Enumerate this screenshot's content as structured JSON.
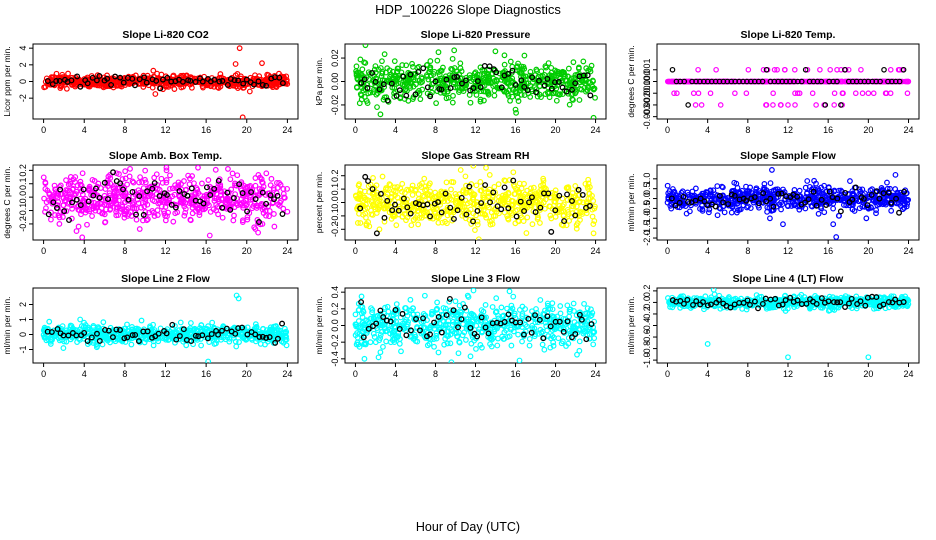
{
  "figure": {
    "title": "HDP_100226  Slope Diagnostics",
    "xlabel": "Hour of Day (UTC)"
  },
  "chart_data": [
    {
      "type": "scatter",
      "title": "Slope Li-820 CO2",
      "ylabel": "Licor ppm per min.",
      "color": "#ff0000",
      "xlim": [
        0,
        24
      ],
      "ylim": [
        -4.5,
        4.5
      ],
      "xticks": [
        0,
        4,
        8,
        12,
        16,
        20,
        24
      ],
      "xtick_labels": [
        "0",
        "4",
        "8",
        "12",
        "16",
        "20",
        "24"
      ],
      "yticks": [
        -2,
        0,
        2,
        4
      ],
      "ytick_labels": [
        "-2",
        "0",
        "2",
        "4"
      ],
      "spread": 0.35,
      "rare": [
        [
          10.8,
          1.3
        ],
        [
          11.0,
          -1.5
        ],
        [
          19.3,
          4.0
        ],
        [
          19.6,
          -4.3
        ],
        [
          18.9,
          2.1
        ],
        [
          20.3,
          -1.2
        ],
        [
          21.5,
          2.2
        ]
      ]
    },
    {
      "type": "scatter",
      "title": "Slope Li-820 Pressure",
      "ylabel": "kPa per min.",
      "color": "#00cc00",
      "xlim": [
        0,
        24
      ],
      "ylim": [
        -0.032,
        0.032
      ],
      "xticks": [
        0,
        4,
        8,
        12,
        16,
        20,
        24
      ],
      "xtick_labels": [
        "0",
        "4",
        "8",
        "12",
        "16",
        "20",
        "24"
      ],
      "yticks": [
        -0.02,
        0,
        0.02
      ],
      "ytick_labels": [
        "-0.02",
        "0.00",
        "0.02"
      ],
      "spread": 0.008,
      "rare": [
        [
          1.0,
          0.031
        ],
        [
          8.3,
          0.025
        ],
        [
          2.5,
          -0.028
        ],
        [
          16.2,
          0.013
        ],
        [
          16.0,
          -0.024
        ],
        [
          23.8,
          -0.031
        ]
      ]
    },
    {
      "type": "scatter",
      "title": "Slope Li-820 Temp.",
      "ylabel": "degrees C per min.",
      "color": "#ff00ff",
      "xlim": [
        0,
        24
      ],
      "ylim": [
        -0.0032,
        0.0032
      ],
      "xticks": [
        0,
        4,
        8,
        12,
        16,
        20,
        24
      ],
      "xtick_labels": [
        "0",
        "4",
        "8",
        "12",
        "16",
        "20",
        "24"
      ],
      "yticks": [
        -0.003,
        -0.002,
        -0.001,
        0,
        0.001
      ],
      "ytick_labels": [
        "-0.003",
        "-0.002",
        "-0.001",
        "0.000",
        "0.001"
      ],
      "spread": 0,
      "rare": [
        [
          15.0,
          0.003
        ],
        [
          15.5,
          -0.003
        ]
      ]
    },
    {
      "type": "scatter",
      "title": "Slope Amb. Box Temp.",
      "ylabel": "degrees C per min.",
      "color": "#ff00ff",
      "xlim": [
        0,
        24
      ],
      "ylim": [
        -0.32,
        0.24
      ],
      "xticks": [
        0,
        4,
        8,
        12,
        16,
        20,
        24
      ],
      "xtick_labels": [
        "0",
        "4",
        "8",
        "12",
        "16",
        "20",
        "24"
      ],
      "yticks": [
        -0.2,
        -0.1,
        0,
        0.1,
        0.2
      ],
      "ytick_labels": [
        "-0.2",
        "-0.1",
        "0.0",
        "0.1",
        "0.2"
      ],
      "spread": 0.09,
      "rare": [
        [
          3.8,
          -0.3
        ],
        [
          15.2,
          0.22
        ],
        [
          12.1,
          0.2
        ]
      ]
    },
    {
      "type": "scatter",
      "title": "Slope Gas Stream RH",
      "ylabel": "percent per min.",
      "color": "#ffff00",
      "xlim": [
        0,
        24
      ],
      "ylim": [
        -0.28,
        0.28
      ],
      "xticks": [
        0,
        4,
        8,
        12,
        16,
        20,
        24
      ],
      "xtick_labels": [
        "0",
        "4",
        "8",
        "12",
        "16",
        "20",
        "24"
      ],
      "yticks": [
        -0.2,
        -0.1,
        0,
        0.1,
        0.2
      ],
      "ytick_labels": [
        "-0.2",
        "-0.1",
        "0.0",
        "0.1",
        "0.2"
      ],
      "spread": 0.09,
      "rare": [
        [
          23.8,
          -0.23
        ],
        [
          2.4,
          -0.2
        ]
      ]
    },
    {
      "type": "scatter",
      "title": "Slope Sample Flow",
      "ylabel": "ml/min per min.",
      "color": "#0000ff",
      "xlim": [
        0,
        24
      ],
      "ylim": [
        -2.1,
        1.7
      ],
      "xticks": [
        0,
        4,
        8,
        12,
        16,
        20,
        24
      ],
      "xtick_labels": [
        "0",
        "4",
        "8",
        "12",
        "16",
        "20",
        "24"
      ],
      "yticks": [
        -2,
        -1.5,
        -1,
        -0.5,
        0,
        0.5,
        1
      ],
      "ytick_labels": [
        "-2.0",
        "-1.5",
        "-1.0",
        "-0.5",
        "0.0",
        "0.5",
        "1.0"
      ],
      "spread": 0.3,
      "rare": [
        [
          10.4,
          1.45
        ],
        [
          11.5,
          -1.3
        ],
        [
          16.8,
          -1.95
        ],
        [
          10.2,
          -1.0
        ],
        [
          14.6,
          0.9
        ],
        [
          16.5,
          -1.3
        ],
        [
          19.8,
          -1.0
        ],
        [
          22.7,
          1.2
        ]
      ]
    },
    {
      "type": "scatter",
      "title": "Slope Line 2 Flow",
      "ylabel": "ml/min per min.",
      "color": "#00ffff",
      "xlim": [
        0,
        24
      ],
      "ylim": [
        -1.9,
        3.1
      ],
      "xticks": [
        0,
        4,
        8,
        12,
        16,
        20,
        24
      ],
      "xtick_labels": [
        "0",
        "4",
        "8",
        "12",
        "16",
        "20",
        "24"
      ],
      "yticks": [
        -1,
        0,
        1,
        2
      ],
      "ytick_labels": [
        "-1",
        "0",
        "1",
        "2"
      ],
      "spread": 0.3,
      "rare": [
        [
          19.0,
          2.6
        ],
        [
          19.2,
          2.4
        ],
        [
          16.2,
          -1.8
        ],
        [
          3.6,
          1.0
        ],
        [
          13.5,
          0.8
        ]
      ]
    },
    {
      "type": "scatter",
      "title": "Slope Line 3 Flow",
      "ylabel": "ml/min per min.",
      "color": "#00ffff",
      "xlim": [
        0,
        24
      ],
      "ylim": [
        -0.45,
        0.45
      ],
      "xticks": [
        0,
        4,
        8,
        12,
        16,
        20,
        24
      ],
      "xtick_labels": [
        "0",
        "4",
        "8",
        "12",
        "16",
        "20",
        "24"
      ],
      "yticks": [
        -0.4,
        -0.2,
        0,
        0.2,
        0.4
      ],
      "ytick_labels": [
        "-0.4",
        "-0.2",
        "0.0",
        "0.2",
        "0.4"
      ],
      "spread": 0.13,
      "rare": [
        [
          0.9,
          -0.4
        ],
        [
          11.5,
          -0.37
        ],
        [
          16.4,
          -0.42
        ],
        [
          11.8,
          0.42
        ],
        [
          15.4,
          0.41
        ]
      ]
    },
    {
      "type": "scatter",
      "title": "Slope Line 4 (LT) Flow",
      "ylabel": "ml/min per min.",
      "color": "#00ffff",
      "xlim": [
        0,
        24
      ],
      "ylim": [
        -1.05,
        0.25
      ],
      "xticks": [
        0,
        4,
        8,
        12,
        16,
        20,
        24
      ],
      "xtick_labels": [
        "0",
        "4",
        "8",
        "12",
        "16",
        "20",
        "24"
      ],
      "yticks": [
        -1,
        -0.8,
        -0.6,
        -0.4,
        -0.2,
        0,
        0.2
      ],
      "ytick_labels": [
        "-1.0",
        "-0.8",
        "-0.6",
        "-0.4",
        "-0.2",
        "0.0",
        "0.2"
      ],
      "spread": 0.05,
      "rare": [
        [
          4.0,
          -0.72
        ],
        [
          12.0,
          -0.95
        ],
        [
          20.0,
          -0.95
        ],
        [
          4.6,
          0.22
        ]
      ]
    }
  ]
}
